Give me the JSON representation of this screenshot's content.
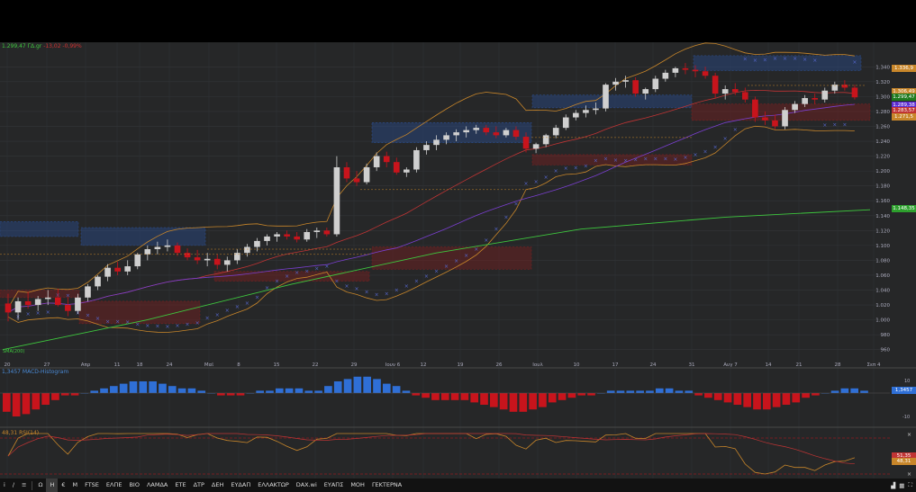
{
  "header": {
    "price": "1.299,47 ΓΔ.gr",
    "change": "-13,02 -0,99%",
    "macd_label": "1,3457 MACD-Histogram",
    "rsi_label": "48,31 RSI(14)",
    "sma_label": "SMA(200)"
  },
  "colors": {
    "up": "#cfcfcf",
    "down": "#c8141c",
    "sma200": "#3ec83e",
    "sma_mid": "#7a3fd0",
    "ema": "#c03434",
    "bollinger": "#c8862a",
    "sar": "#5566cc",
    "macd_pos": "#2f6fd6",
    "macd_neg": "#c8141c"
  },
  "price_tags": [
    {
      "text": "1.336,9",
      "color": "#c8862a"
    },
    {
      "text": "1.306,49",
      "color": "#c8862a"
    },
    {
      "text": "1.299,47",
      "color": "#1f7a1f"
    },
    {
      "text": "1.289,38",
      "color": "#5a2bd0"
    },
    {
      "text": "1.283,57",
      "color": "#c03434"
    },
    {
      "text": "1.271,5",
      "color": "#c8862a"
    },
    {
      "text": "1.148,35",
      "color": "#2da02d"
    },
    {
      "text": "1,3457",
      "color": "#2f6fd6"
    },
    {
      "text": "51,35",
      "color": "#c03434"
    },
    {
      "text": "48,31",
      "color": "#c8862a"
    }
  ],
  "toolbar": {
    "items": [
      "FTSE",
      "ΕΛΠΕ",
      "ΒΙΟ",
      "ΛΑΜΔΑ",
      "ΕΤΕ",
      "ΔΤΡ",
      "ΔΕΗ",
      "ΕΥΔΑΠ",
      "ΕΛΛΑΚΤΩΡ",
      "DAX.wi",
      "ΕΥΑΠΣ",
      "ΜΟΗ",
      "ΓΕΚΤΕΡΝΑ"
    ],
    "left_icons": [
      "i",
      "/",
      "Ω",
      "Η",
      "€",
      "Μ"
    ]
  },
  "chart_data": {
    "type": "candlestick",
    "x_labels": [
      "20",
      "27",
      "Απρ",
      "11",
      "18",
      "24",
      "Μαϊ",
      "8",
      "15",
      "22",
      "29",
      "Ιουν 6",
      "12",
      "19",
      "26",
      "Ιουλ",
      "10",
      "17",
      "24",
      "31",
      "Αυγ 7",
      "14",
      "21",
      "28",
      "Σεπ 4"
    ],
    "y_ticks": [
      "1.340",
      "1.320",
      "1.300",
      "1.280",
      "1.260",
      "1.240",
      "1.220",
      "1.200",
      "1.180",
      "1.160",
      "1.140",
      "1.120",
      "1.100",
      "1.080",
      "1.060",
      "1.040",
      "1.020",
      "1.000",
      "980",
      "960"
    ],
    "y_range": [
      950,
      1350
    ],
    "candles": [
      [
        1022,
        1035,
        998,
        1010
      ],
      [
        1010,
        1030,
        1000,
        1025
      ],
      [
        1025,
        1038,
        1015,
        1020
      ],
      [
        1020,
        1032,
        1012,
        1028
      ],
      [
        1028,
        1040,
        1020,
        1030
      ],
      [
        1030,
        1042,
        1018,
        1020
      ],
      [
        1020,
        1030,
        1005,
        1012
      ],
      [
        1012,
        1035,
        1008,
        1030
      ],
      [
        1030,
        1048,
        1025,
        1045
      ],
      [
        1045,
        1060,
        1040,
        1058
      ],
      [
        1058,
        1075,
        1052,
        1070
      ],
      [
        1070,
        1078,
        1060,
        1065
      ],
      [
        1065,
        1080,
        1060,
        1072
      ],
      [
        1072,
        1090,
        1068,
        1088
      ],
      [
        1088,
        1100,
        1080,
        1095
      ],
      [
        1095,
        1105,
        1088,
        1098
      ],
      [
        1098,
        1108,
        1092,
        1100
      ],
      [
        1100,
        1104,
        1086,
        1090
      ],
      [
        1090,
        1096,
        1080,
        1084
      ],
      [
        1084,
        1094,
        1075,
        1080
      ],
      [
        1080,
        1090,
        1072,
        1082
      ],
      [
        1082,
        1088,
        1068,
        1074
      ],
      [
        1074,
        1085,
        1065,
        1080
      ],
      [
        1080,
        1095,
        1075,
        1090
      ],
      [
        1090,
        1102,
        1085,
        1098
      ],
      [
        1098,
        1110,
        1092,
        1106
      ],
      [
        1106,
        1115,
        1100,
        1112
      ],
      [
        1112,
        1118,
        1105,
        1115
      ],
      [
        1115,
        1120,
        1108,
        1112
      ],
      [
        1112,
        1118,
        1104,
        1108
      ],
      [
        1108,
        1122,
        1105,
        1118
      ],
      [
        1118,
        1124,
        1110,
        1120
      ],
      [
        1120,
        1124,
        1112,
        1115
      ],
      [
        1115,
        1220,
        1112,
        1205
      ],
      [
        1205,
        1212,
        1185,
        1190
      ],
      [
        1190,
        1200,
        1180,
        1185
      ],
      [
        1185,
        1210,
        1182,
        1205
      ],
      [
        1205,
        1225,
        1200,
        1220
      ],
      [
        1220,
        1226,
        1205,
        1212
      ],
      [
        1212,
        1218,
        1195,
        1198
      ],
      [
        1198,
        1205,
        1192,
        1202
      ],
      [
        1202,
        1232,
        1198,
        1228
      ],
      [
        1228,
        1240,
        1222,
        1235
      ],
      [
        1235,
        1248,
        1228,
        1242
      ],
      [
        1242,
        1252,
        1236,
        1248
      ],
      [
        1248,
        1256,
        1240,
        1252
      ],
      [
        1252,
        1260,
        1245,
        1255
      ],
      [
        1255,
        1262,
        1250,
        1258
      ],
      [
        1258,
        1262,
        1248,
        1252
      ],
      [
        1252,
        1260,
        1244,
        1248
      ],
      [
        1248,
        1258,
        1245,
        1255
      ],
      [
        1255,
        1260,
        1242,
        1246
      ],
      [
        1246,
        1252,
        1225,
        1230
      ],
      [
        1230,
        1238,
        1224,
        1236
      ],
      [
        1236,
        1250,
        1232,
        1248
      ],
      [
        1248,
        1262,
        1244,
        1258
      ],
      [
        1258,
        1276,
        1255,
        1272
      ],
      [
        1272,
        1282,
        1268,
        1278
      ],
      [
        1278,
        1288,
        1272,
        1282
      ],
      [
        1282,
        1292,
        1276,
        1284
      ],
      [
        1284,
        1318,
        1280,
        1316
      ],
      [
        1316,
        1325,
        1308,
        1320
      ],
      [
        1320,
        1328,
        1312,
        1322
      ],
      [
        1322,
        1326,
        1300,
        1304
      ],
      [
        1304,
        1312,
        1296,
        1310
      ],
      [
        1310,
        1328,
        1306,
        1324
      ],
      [
        1324,
        1336,
        1320,
        1332
      ],
      [
        1332,
        1340,
        1326,
        1338
      ],
      [
        1338,
        1345,
        1330,
        1336
      ],
      [
        1336,
        1342,
        1326,
        1334
      ],
      [
        1334,
        1340,
        1324,
        1328
      ],
      [
        1328,
        1332,
        1298,
        1304
      ],
      [
        1304,
        1315,
        1296,
        1310
      ],
      [
        1310,
        1318,
        1302,
        1306
      ],
      [
        1306,
        1312,
        1292,
        1296
      ],
      [
        1296,
        1300,
        1266,
        1272
      ],
      [
        1272,
        1280,
        1262,
        1268
      ],
      [
        1268,
        1276,
        1256,
        1260
      ],
      [
        1260,
        1286,
        1256,
        1282
      ],
      [
        1282,
        1294,
        1278,
        1290
      ],
      [
        1290,
        1302,
        1286,
        1298
      ],
      [
        1298,
        1304,
        1290,
        1296
      ],
      [
        1296,
        1312,
        1292,
        1308
      ],
      [
        1308,
        1320,
        1304,
        1316
      ],
      [
        1316,
        1322,
        1308,
        1312
      ],
      [
        1312,
        1316,
        1296,
        1299
      ]
    ],
    "sma200": [
      960,
      1000,
      1048,
      1090,
      1122,
      1138,
      1148
    ],
    "macd_histogram": [
      -8,
      -10,
      -9,
      -7,
      -5,
      -3,
      -1,
      -1,
      0,
      1,
      2,
      3,
      4,
      5,
      5,
      5,
      4,
      3,
      2,
      2,
      1,
      0,
      -1,
      -1,
      -1,
      0,
      1,
      1,
      2,
      2,
      2,
      1,
      1,
      3,
      5,
      6,
      7,
      7,
      6,
      4,
      3,
      1,
      -1,
      -2,
      -3,
      -3,
      -3,
      -3,
      -4,
      -5,
      -6,
      -7,
      -8,
      -8,
      -7,
      -6,
      -4,
      -3,
      -2,
      -1,
      -1,
      0,
      1,
      1,
      1,
      1,
      1,
      2,
      2,
      1,
      1,
      -1,
      -2,
      -3,
      -4,
      -5,
      -6,
      -7,
      -7,
      -6,
      -5,
      -4,
      -2,
      -1,
      0,
      1,
      2,
      2,
      1
    ]
  }
}
